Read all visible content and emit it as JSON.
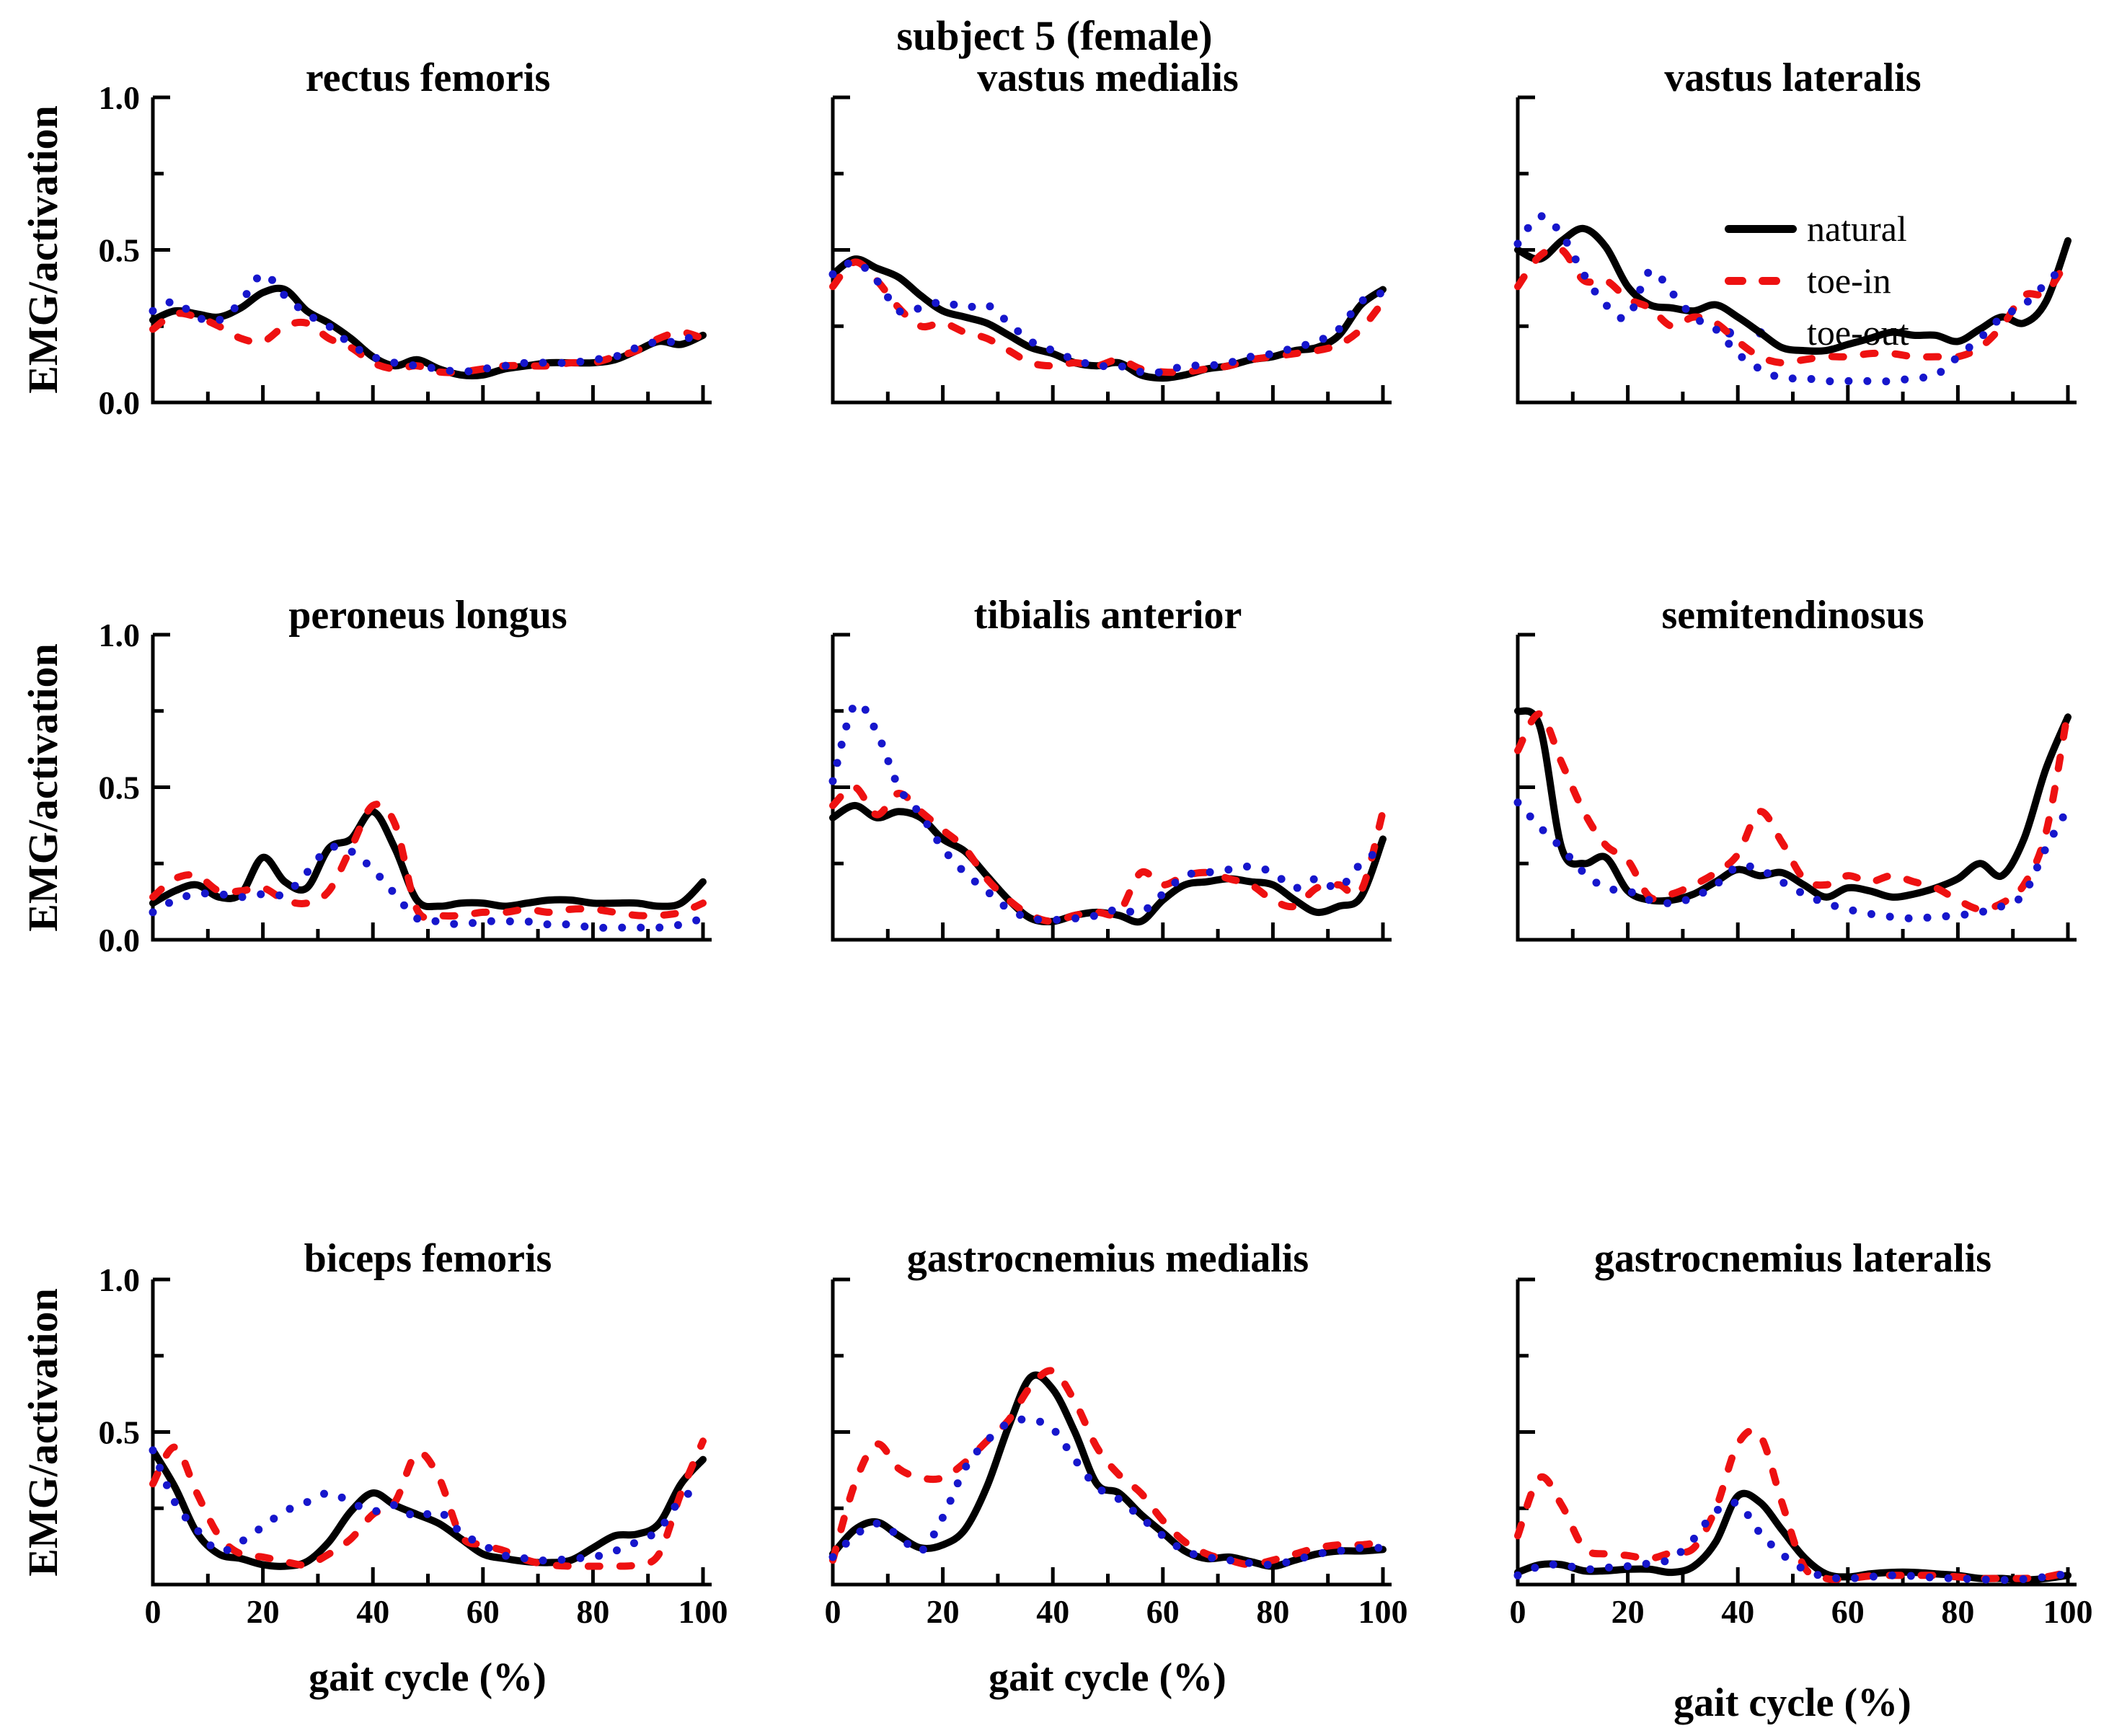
{
  "figure": {
    "title": "subject 5 (female)"
  },
  "chart_data": {
    "type": "line",
    "title": "subject 5 (female)",
    "xlabel": "gait cycle (%)",
    "ylabel": "EMG/activation",
    "xlim": [
      0,
      100
    ],
    "ylim": [
      0,
      1
    ],
    "x_ticks": [
      0,
      20,
      40,
      60,
      80,
      100
    ],
    "x_minor_ticks": [
      10,
      30,
      50,
      70,
      90
    ],
    "y_ticks": [
      {
        "value": 0,
        "label": "0.0"
      },
      {
        "value": 0.5,
        "label": "0.5"
      },
      {
        "value": 1,
        "label": "1.0"
      }
    ],
    "y_minor_ticks": [
      0.25,
      0.75
    ],
    "grid": false,
    "legend": {
      "position": "inside-top-right-panel",
      "entries": [
        {
          "label": "natural",
          "color": "#000000",
          "style": "solid"
        },
        {
          "label": "toe-in",
          "color": "#ee1111",
          "style": "dashed"
        },
        {
          "label": "toe-out",
          "color": "#1616cc",
          "style": "dotted"
        }
      ]
    },
    "x": [
      0,
      4,
      8,
      12,
      16,
      20,
      24,
      28,
      32,
      36,
      40,
      44,
      48,
      52,
      56,
      60,
      64,
      68,
      72,
      76,
      80,
      84,
      88,
      92,
      96,
      100
    ],
    "panels": [
      {
        "title": "rectus femoris",
        "series": [
          {
            "name": "natural",
            "values": [
              0.27,
              0.3,
              0.29,
              0.28,
              0.31,
              0.36,
              0.37,
              0.3,
              0.26,
              0.21,
              0.15,
              0.12,
              0.14,
              0.11,
              0.09,
              0.09,
              0.11,
              0.12,
              0.13,
              0.13,
              0.13,
              0.14,
              0.17,
              0.2,
              0.19,
              0.22
            ]
          },
          {
            "name": "toe-in",
            "values": [
              0.24,
              0.29,
              0.28,
              0.25,
              0.21,
              0.2,
              0.25,
              0.26,
              0.21,
              0.18,
              0.13,
              0.11,
              0.12,
              0.1,
              0.1,
              0.11,
              0.12,
              0.12,
              0.12,
              0.13,
              0.13,
              0.15,
              0.17,
              0.21,
              0.23,
              0.21
            ]
          },
          {
            "name": "toe-out",
            "values": [
              0.3,
              0.33,
              0.28,
              0.27,
              0.33,
              0.42,
              0.35,
              0.29,
              0.25,
              0.19,
              0.15,
              0.13,
              0.12,
              0.11,
              0.1,
              0.11,
              0.12,
              0.13,
              0.13,
              0.13,
              0.14,
              0.15,
              0.18,
              0.2,
              0.2,
              0.24
            ]
          }
        ]
      },
      {
        "title": "vastus medialis",
        "series": [
          {
            "name": "natural",
            "values": [
              0.42,
              0.47,
              0.44,
              0.41,
              0.35,
              0.3,
              0.28,
              0.26,
              0.22,
              0.18,
              0.16,
              0.13,
              0.12,
              0.13,
              0.09,
              0.08,
              0.09,
              0.11,
              0.12,
              0.14,
              0.15,
              0.17,
              0.18,
              0.22,
              0.32,
              0.37
            ]
          },
          {
            "name": "toe-in",
            "values": [
              0.38,
              0.46,
              0.4,
              0.31,
              0.25,
              0.26,
              0.23,
              0.21,
              0.17,
              0.13,
              0.12,
              0.13,
              0.12,
              0.14,
              0.11,
              0.1,
              0.1,
              0.11,
              0.12,
              0.14,
              0.15,
              0.16,
              0.17,
              0.19,
              0.24,
              0.33
            ]
          },
          {
            "name": "toe-out",
            "values": [
              0.42,
              0.46,
              0.4,
              0.3,
              0.31,
              0.33,
              0.31,
              0.32,
              0.26,
              0.2,
              0.17,
              0.14,
              0.12,
              0.12,
              0.1,
              0.1,
              0.12,
              0.12,
              0.13,
              0.15,
              0.16,
              0.18,
              0.2,
              0.24,
              0.33,
              0.36
            ]
          }
        ]
      },
      {
        "title": "vastus lateralis",
        "series": [
          {
            "name": "natural",
            "values": [
              0.5,
              0.47,
              0.53,
              0.57,
              0.51,
              0.38,
              0.32,
              0.31,
              0.3,
              0.32,
              0.28,
              0.23,
              0.18,
              0.17,
              0.17,
              0.19,
              0.21,
              0.23,
              0.22,
              0.22,
              0.2,
              0.24,
              0.28,
              0.26,
              0.33,
              0.53
            ]
          },
          {
            "name": "toe-in",
            "values": [
              0.38,
              0.48,
              0.5,
              0.4,
              0.4,
              0.34,
              0.31,
              0.25,
              0.28,
              0.26,
              0.2,
              0.15,
              0.13,
              0.14,
              0.15,
              0.15,
              0.16,
              0.16,
              0.15,
              0.15,
              0.15,
              0.18,
              0.25,
              0.35,
              0.36,
              0.47
            ]
          },
          {
            "name": "toe-out",
            "values": [
              0.52,
              0.61,
              0.55,
              0.42,
              0.32,
              0.28,
              0.43,
              0.36,
              0.28,
              0.24,
              0.16,
              0.11,
              0.08,
              0.08,
              0.07,
              0.07,
              0.07,
              0.07,
              0.08,
              0.09,
              0.15,
              0.21,
              0.28,
              0.32,
              0.39,
              0.46
            ]
          }
        ]
      },
      {
        "title": "peroneus longus",
        "series": [
          {
            "name": "natural",
            "values": [
              0.12,
              0.16,
              0.18,
              0.14,
              0.15,
              0.27,
              0.19,
              0.17,
              0.3,
              0.33,
              0.42,
              0.3,
              0.13,
              0.11,
              0.12,
              0.12,
              0.11,
              0.12,
              0.13,
              0.13,
              0.12,
              0.12,
              0.12,
              0.11,
              0.12,
              0.19
            ]
          },
          {
            "name": "toe-in",
            "values": [
              0.14,
              0.2,
              0.21,
              0.16,
              0.16,
              0.17,
              0.13,
              0.12,
              0.16,
              0.3,
              0.44,
              0.38,
              0.1,
              0.08,
              0.08,
              0.09,
              0.09,
              0.1,
              0.09,
              0.1,
              0.1,
              0.09,
              0.08,
              0.08,
              0.09,
              0.12
            ]
          },
          {
            "name": "toe-out",
            "values": [
              0.09,
              0.13,
              0.15,
              0.15,
              0.14,
              0.15,
              0.15,
              0.22,
              0.3,
              0.29,
              0.23,
              0.15,
              0.07,
              0.06,
              0.05,
              0.06,
              0.06,
              0.06,
              0.05,
              0.05,
              0.04,
              0.04,
              0.04,
              0.04,
              0.05,
              0.07
            ]
          }
        ]
      },
      {
        "title": "tibialis anterior",
        "series": [
          {
            "name": "natural",
            "values": [
              0.4,
              0.44,
              0.4,
              0.42,
              0.4,
              0.33,
              0.29,
              0.21,
              0.13,
              0.07,
              0.06,
              0.08,
              0.09,
              0.08,
              0.06,
              0.13,
              0.18,
              0.19,
              0.2,
              0.19,
              0.18,
              0.13,
              0.09,
              0.11,
              0.14,
              0.33
            ]
          },
          {
            "name": "toe-in",
            "values": [
              0.44,
              0.5,
              0.41,
              0.48,
              0.42,
              0.36,
              0.3,
              0.2,
              0.13,
              0.08,
              0.06,
              0.08,
              0.09,
              0.09,
              0.22,
              0.18,
              0.21,
              0.22,
              0.2,
              0.18,
              0.13,
              0.11,
              0.17,
              0.18,
              0.16,
              0.42
            ]
          },
          {
            "name": "toe-out",
            "values": [
              0.52,
              0.77,
              0.68,
              0.5,
              0.41,
              0.3,
              0.22,
              0.16,
              0.1,
              0.07,
              0.065,
              0.07,
              0.08,
              0.1,
              0.09,
              0.15,
              0.21,
              0.22,
              0.23,
              0.24,
              0.22,
              0.17,
              0.2,
              0.17,
              0.25,
              0.3
            ]
          }
        ]
      },
      {
        "title": "semitendinosus",
        "series": [
          {
            "name": "natural",
            "values": [
              0.75,
              0.7,
              0.3,
              0.25,
              0.27,
              0.16,
              0.13,
              0.13,
              0.15,
              0.19,
              0.23,
              0.21,
              0.22,
              0.18,
              0.14,
              0.17,
              0.16,
              0.14,
              0.15,
              0.17,
              0.2,
              0.25,
              0.21,
              0.33,
              0.56,
              0.73
            ]
          },
          {
            "name": "toe-in",
            "values": [
              0.62,
              0.74,
              0.58,
              0.42,
              0.31,
              0.26,
              0.14,
              0.15,
              0.18,
              0.22,
              0.28,
              0.42,
              0.32,
              0.2,
              0.18,
              0.21,
              0.19,
              0.21,
              0.19,
              0.17,
              0.13,
              0.1,
              0.12,
              0.18,
              0.35,
              0.75
            ]
          },
          {
            "name": "toe-out",
            "values": [
              0.45,
              0.37,
              0.3,
              0.22,
              0.17,
              0.16,
              0.13,
              0.12,
              0.14,
              0.18,
              0.24,
              0.23,
              0.19,
              0.15,
              0.12,
              0.1,
              0.085,
              0.075,
              0.07,
              0.075,
              0.08,
              0.09,
              0.11,
              0.15,
              0.3,
              0.43
            ]
          }
        ]
      },
      {
        "title": "biceps femoris",
        "series": [
          {
            "name": "natural",
            "values": [
              0.44,
              0.32,
              0.17,
              0.1,
              0.085,
              0.065,
              0.06,
              0.075,
              0.14,
              0.24,
              0.3,
              0.26,
              0.23,
              0.2,
              0.15,
              0.1,
              0.085,
              0.075,
              0.072,
              0.08,
              0.12,
              0.16,
              0.165,
              0.2,
              0.33,
              0.41
            ]
          },
          {
            "name": "toe-in",
            "values": [
              0.33,
              0.45,
              0.3,
              0.16,
              0.1,
              0.09,
              0.075,
              0.065,
              0.1,
              0.15,
              0.23,
              0.27,
              0.43,
              0.35,
              0.16,
              0.13,
              0.11,
              0.08,
              0.065,
              0.06,
              0.06,
              0.06,
              0.065,
              0.1,
              0.3,
              0.47
            ]
          },
          {
            "name": "toe-out",
            "values": [
              0.44,
              0.27,
              0.18,
              0.11,
              0.14,
              0.19,
              0.24,
              0.27,
              0.3,
              0.27,
              0.24,
              0.26,
              0.22,
              0.24,
              0.17,
              0.13,
              0.095,
              0.085,
              0.078,
              0.085,
              0.09,
              0.11,
              0.14,
              0.18,
              0.28,
              0.32
            ]
          }
        ]
      },
      {
        "title": "gastrocnemius medialis",
        "series": [
          {
            "name": "natural",
            "values": [
              0.1,
              0.18,
              0.205,
              0.16,
              0.12,
              0.13,
              0.18,
              0.32,
              0.52,
              0.68,
              0.64,
              0.5,
              0.33,
              0.3,
              0.23,
              0.17,
              0.11,
              0.085,
              0.09,
              0.075,
              0.06,
              0.08,
              0.1,
              0.11,
              0.11,
              0.115
            ]
          },
          {
            "name": "toe-in",
            "values": [
              0.08,
              0.33,
              0.46,
              0.38,
              0.35,
              0.35,
              0.4,
              0.47,
              0.54,
              0.65,
              0.7,
              0.6,
              0.45,
              0.36,
              0.3,
              0.21,
              0.14,
              0.1,
              0.08,
              0.065,
              0.08,
              0.1,
              0.12,
              0.13,
              0.13,
              0.14
            ]
          },
          {
            "name": "toe-out",
            "values": [
              0.09,
              0.16,
              0.2,
              0.16,
              0.11,
              0.22,
              0.38,
              0.47,
              0.53,
              0.54,
              0.51,
              0.41,
              0.32,
              0.28,
              0.22,
              0.16,
              0.11,
              0.09,
              0.08,
              0.07,
              0.065,
              0.08,
              0.1,
              0.11,
              0.12,
              0.12
            ]
          }
        ]
      },
      {
        "title": "gastrocnemius lateralis",
        "series": [
          {
            "name": "natural",
            "values": [
              0.04,
              0.065,
              0.065,
              0.045,
              0.045,
              0.05,
              0.05,
              0.04,
              0.06,
              0.14,
              0.29,
              0.27,
              0.18,
              0.09,
              0.035,
              0.025,
              0.035,
              0.04,
              0.04,
              0.035,
              0.03,
              0.02,
              0.02,
              0.015,
              0.02,
              0.03
            ]
          },
          {
            "name": "toe-in",
            "values": [
              0.16,
              0.35,
              0.26,
              0.12,
              0.1,
              0.095,
              0.085,
              0.105,
              0.12,
              0.25,
              0.46,
              0.49,
              0.27,
              0.06,
              0.02,
              0.02,
              0.028,
              0.03,
              0.03,
              0.03,
              0.025,
              0.02,
              0.02,
              0.02,
              0.025,
              0.04
            ]
          },
          {
            "name": "toe-out",
            "values": [
              0.03,
              0.06,
              0.065,
              0.05,
              0.055,
              0.06,
              0.07,
              0.085,
              0.15,
              0.24,
              0.265,
              0.17,
              0.1,
              0.05,
              0.025,
              0.02,
              0.025,
              0.03,
              0.028,
              0.022,
              0.02,
              0.017,
              0.015,
              0.018,
              0.025,
              0.035
            ]
          }
        ]
      }
    ]
  }
}
